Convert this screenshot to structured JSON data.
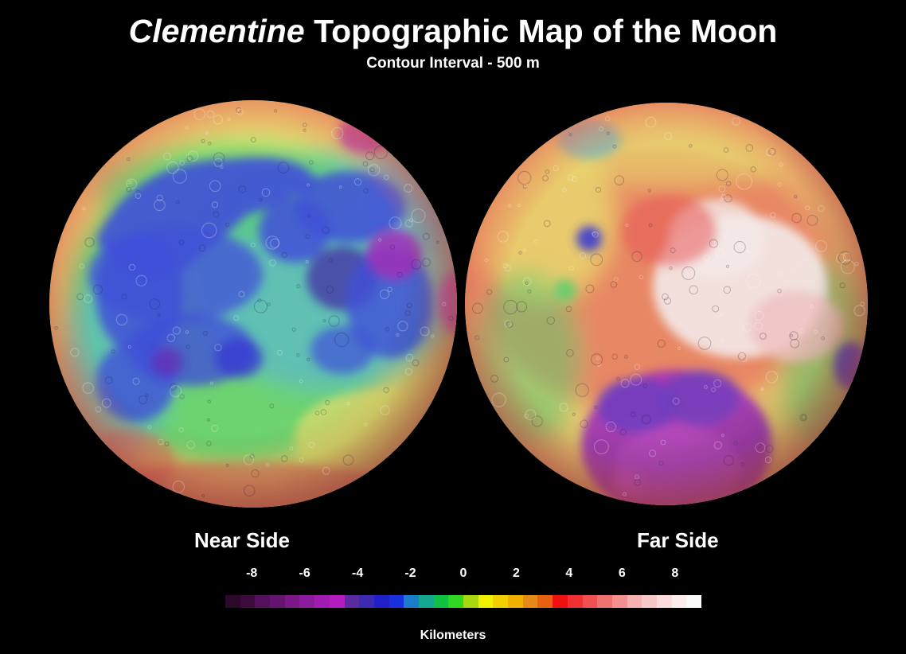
{
  "title": {
    "italic_part": "Clementine",
    "rest": "Topographic Map of the Moon"
  },
  "subtitle": "Contour Interval - 500 m",
  "hemispheres": {
    "near": {
      "label": "Near Side"
    },
    "far": {
      "label": "Far Side"
    }
  },
  "legend": {
    "unit_label": "Kilometers",
    "min_km": -9,
    "max_km": 9,
    "ticks": [
      {
        "label": "-8",
        "value": -8
      },
      {
        "label": "-6",
        "value": -6
      },
      {
        "label": "-4",
        "value": -4
      },
      {
        "label": "-2",
        "value": -2
      },
      {
        "label": "0",
        "value": 0
      },
      {
        "label": "2",
        "value": 2
      },
      {
        "label": "4",
        "value": 4
      },
      {
        "label": "6",
        "value": 6
      },
      {
        "label": "8",
        "value": 8
      }
    ],
    "colors": [
      "#2a0a28",
      "#3c0a3c",
      "#52115a",
      "#641470",
      "#7a1888",
      "#8c1c9c",
      "#a01cb0",
      "#b41cc0",
      "#5a2aa0",
      "#3c2ab0",
      "#2020c8",
      "#1830e0",
      "#1c7ccc",
      "#14a890",
      "#10c040",
      "#30d820",
      "#a8d810",
      "#f0f000",
      "#f0d000",
      "#f0b000",
      "#e88818",
      "#e86010",
      "#f01010",
      "#f03030",
      "#f05050",
      "#f07070",
      "#f49090",
      "#f8b0b0",
      "#f8c8c8",
      "#fcdcdc",
      "#fcecec",
      "#fafafa"
    ]
  },
  "palette": {
    "background": "#000000",
    "highland_yellow": "#e8e070",
    "green": "#58d070",
    "cyan": "#5ab8d0",
    "mare_blue": "#4050d8",
    "basin_purple": "#a030b8",
    "highland_red": "#e85a5a",
    "peak_white": "#f4eaea"
  }
}
